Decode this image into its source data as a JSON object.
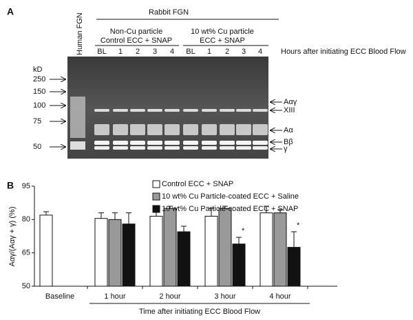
{
  "gel": {
    "panel": "A",
    "human_lane": "Human FGN",
    "group_title": "Rabbit FGN",
    "groups": [
      {
        "line1": "Non-Cu particle",
        "line2": "Control ECC + SNAP"
      },
      {
        "line1": "10 wt% Cu particle",
        "line2": "ECC + SNAP"
      }
    ],
    "lanes": [
      "BL",
      "1",
      "2",
      "3",
      "4",
      "BL",
      "1",
      "2",
      "3",
      "4"
    ],
    "lanes_caption": "Hours after initiating ECC Blood Flow",
    "marker_unit": "kD",
    "markers": [
      "250",
      "150",
      "100",
      "75",
      "50"
    ],
    "bands": [
      "Aαγ",
      "XIII",
      "Aα",
      "Bβ",
      "γ"
    ]
  },
  "chart_data": {
    "type": "bar",
    "panel": "B",
    "ylabel": "Aαγ/(Aαγ + γ) (%)",
    "xlabel": "Time after initiating ECC Blood Flow",
    "categories": [
      "Baseline",
      "1 hour",
      "2 hour",
      "3 hour",
      "4 hour"
    ],
    "ylim": [
      50,
      95
    ],
    "yticks": [
      50,
      65,
      80,
      95
    ],
    "series": [
      {
        "name": "Control ECC + SNAP",
        "color": "#ffffff",
        "values": [
          82,
          80.5,
          81.5,
          81.5,
          83
        ],
        "errors": [
          1.5,
          2.5,
          3,
          3.5,
          3
        ]
      },
      {
        "name": "10 wt% Cu Particle-coated ECC + Saline",
        "color": "#999999",
        "values": [
          null,
          80,
          85,
          85,
          83
        ],
        "errors": [
          null,
          3,
          1,
          1,
          1.5
        ]
      },
      {
        "name": "10 wt% Cu Particle-coated ECC + SNAP",
        "color": "#111111",
        "values": [
          null,
          78,
          74.5,
          69,
          67.5
        ],
        "errors": [
          null,
          5,
          2.5,
          3,
          7
        ],
        "annotations": [
          null,
          null,
          null,
          "*",
          "*"
        ]
      }
    ]
  }
}
